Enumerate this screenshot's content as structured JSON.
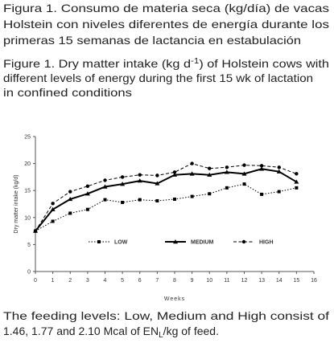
{
  "caption_es": [
    "Figura 1. Consumo de materia seca (kg/día) de vacas",
    "Holstein con niveles diferentes de energía durante los",
    "primeras 15 semanas de lactancia en estabulación"
  ],
  "caption_en": {
    "line1": [
      "Figure 1. Dry matter intake (kg d",
      "-1",
      ") of Holstein cows with"
    ],
    "line2": "different levels of energy during the first 15 wk of lactation",
    "line3": "in confined conditions"
  },
  "chart_data": {
    "type": "line",
    "ylabel": "Dry matter intake (kg/d)",
    "xlabel": "Weeks",
    "x": [
      0,
      1,
      2,
      3,
      4,
      5,
      6,
      7,
      8,
      9,
      10,
      11,
      12,
      13,
      14,
      15
    ],
    "xlim": [
      0,
      16
    ],
    "xticks": [
      0,
      1,
      2,
      3,
      4,
      5,
      6,
      7,
      8,
      9,
      10,
      11,
      12,
      13,
      14,
      15,
      16
    ],
    "ylim": [
      0,
      25
    ],
    "yticks": [
      0,
      5,
      10,
      15,
      20,
      25
    ],
    "grid": false,
    "legend": "center",
    "series": [
      {
        "name": "LOW",
        "color": "#000000",
        "linestyle": "dotted",
        "marker": "square",
        "values": [
          7.5,
          9.3,
          10.8,
          11.5,
          13.3,
          12.8,
          13.3,
          13.1,
          13.4,
          13.9,
          14.4,
          15.5,
          16.2,
          14.3,
          14.8,
          15.5
        ]
      },
      {
        "name": "MEDIUM",
        "color": "#000000",
        "linestyle": "solid",
        "marker": "triangle",
        "values": [
          7.5,
          11.5,
          13.4,
          14.4,
          15.7,
          16.2,
          16.8,
          16.3,
          17.9,
          18.1,
          17.9,
          18.4,
          18.1,
          19.0,
          18.5,
          16.6
        ]
      },
      {
        "name": "HIGH",
        "color": "#000000",
        "linestyle": "dashed",
        "marker": "circle",
        "values": [
          7.5,
          12.6,
          14.8,
          15.8,
          16.9,
          17.5,
          17.9,
          17.8,
          18.4,
          20.0,
          19.1,
          19.3,
          19.7,
          19.6,
          19.3,
          18.1
        ]
      }
    ]
  },
  "footnote": {
    "line1": "The feeding levels: Low, Medium and High consist of",
    "line2": [
      "1.46, 1.77 and 2.10 Mcal of EN",
      "L",
      "/kg of feed."
    ]
  }
}
